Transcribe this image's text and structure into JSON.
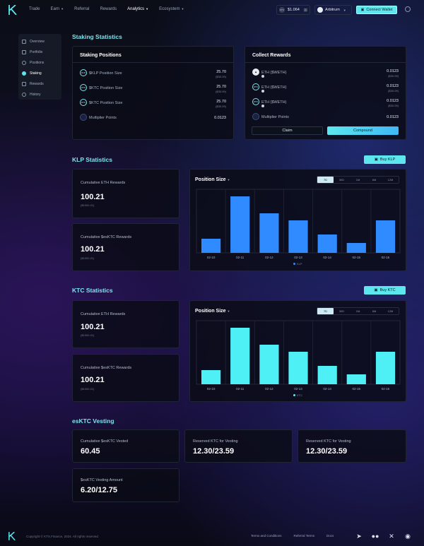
{
  "nav": {
    "links": [
      {
        "label": "Trade",
        "caret": false,
        "active": false
      },
      {
        "label": "Earn",
        "caret": true,
        "active": false
      },
      {
        "label": "Referral",
        "caret": false,
        "active": false
      },
      {
        "label": "Rewards",
        "caret": false,
        "active": false
      },
      {
        "label": "Analytics",
        "caret": true,
        "active": true
      },
      {
        "label": "Ecosystem",
        "caret": true,
        "active": false
      }
    ],
    "price": "$1.064",
    "price_chip": "KTC",
    "network": "Arbitrum",
    "connect_label": "Connect Wallet"
  },
  "sidebar": {
    "items": [
      {
        "label": "Overview",
        "active": false
      },
      {
        "label": "Portfolio",
        "active": false
      },
      {
        "label": "Positions",
        "active": false
      },
      {
        "label": "Staking",
        "active": true
      },
      {
        "label": "Rewards",
        "active": false
      },
      {
        "label": "History",
        "active": false
      }
    ]
  },
  "staking": {
    "title": "Staking Statistics",
    "positions": {
      "title": "Staking Positions",
      "rows": [
        {
          "icon": "KLP",
          "label": "$KLP Position Size",
          "value": "25.70",
          "sub": "($30.09)"
        },
        {
          "icon": "KTC",
          "label": "$KTC Position Size",
          "value": "25.70",
          "sub": "($30.09)"
        },
        {
          "icon": "KTC",
          "label": "$KTC Position Size",
          "value": "25.70",
          "sub": "($30.09)"
        },
        {
          "icon": "",
          "label": "Multiplier Points",
          "value": "0.0123",
          "sub": ""
        }
      ]
    },
    "rewards": {
      "title": "Collect Rewards",
      "rows": [
        {
          "icon": "ETH",
          "label": "ETH ($WETH)",
          "value": "0.0123",
          "sub": "($30.09)"
        },
        {
          "icon": "KTC",
          "label": "ETH ($WETH)",
          "value": "0.0123",
          "sub": "($30.09)"
        },
        {
          "icon": "KTC",
          "label": "ETH ($WETH)",
          "value": "0.0123",
          "sub": "($30.09)"
        },
        {
          "icon": "",
          "label": "Multiplier Points",
          "value": "0.0123",
          "sub": ""
        }
      ],
      "claim_label": "Claim",
      "compound_label": "Compound"
    }
  },
  "klp": {
    "title": "KLP Statistics",
    "buy_label": "Buy KLP",
    "stats": [
      {
        "label": "Cumulative ETH Rewards",
        "value": "100.21",
        "sub": "($1000.21)"
      },
      {
        "label": "Cumulative $esKTC Rewards",
        "value": "100.21",
        "sub": "($1000.21)"
      }
    ],
    "chart_title": "Position Size",
    "timeframes": [
      "7D",
      "30D",
      "1M",
      "6M",
      "12M"
    ],
    "selected_timeframe": "7D"
  },
  "ktc": {
    "title": "KTC Statistics",
    "buy_label": "Buy KTC",
    "stats": [
      {
        "label": "Cumulative ETH Rewards",
        "value": "100.21",
        "sub": "($1000.21)"
      },
      {
        "label": "Cumulative $esKTC Rewards",
        "value": "100.21",
        "sub": "($1000.21)"
      }
    ],
    "chart_title": "Position Size",
    "timeframes": [
      "7D",
      "30D",
      "1M",
      "6M",
      "12M"
    ],
    "selected_timeframe": "7D"
  },
  "vesting": {
    "title": "esKTC Vesting",
    "cards": [
      {
        "label": "Cumulative $esKTC Vested",
        "value": "60.45"
      },
      {
        "label": "Reserved KTC for Vesting",
        "value": "12.30/23.59"
      },
      {
        "label": "Reserved KTC for Vesting",
        "value": "12.30/23.59"
      },
      {
        "label": "$esKTC Vesting Amount",
        "value": "6.20/12.75"
      }
    ]
  },
  "footer": {
    "copyright": "Copyright © KTX.Finance, 2024. All rights reserved",
    "links": [
      "Terms and Conditions",
      "Referral Terms",
      "Docs"
    ]
  },
  "colors": {
    "accent": "#5ce7ee",
    "klp_bar": "#2f8bff",
    "ktc_bar": "#4ff0f5"
  },
  "chart_data": [
    {
      "type": "bar",
      "title": "Position Size",
      "categories": [
        "02-10",
        "02-11",
        "02-12",
        "02-13",
        "02-14",
        "02-15",
        "02-15"
      ],
      "series": [
        {
          "name": "KLP",
          "values": [
            20,
            80,
            56,
            46,
            26,
            14,
            46
          ]
        }
      ],
      "ylim": [
        0,
        90
      ],
      "grid": true,
      "legend": "bottom-center"
    },
    {
      "type": "bar",
      "title": "Position Size",
      "categories": [
        "02-10",
        "02-11",
        "02-12",
        "02-13",
        "02-14",
        "02-15",
        "02-15"
      ],
      "series": [
        {
          "name": "KTC",
          "values": [
            20,
            80,
            56,
            46,
            26,
            14,
            46
          ]
        }
      ],
      "ylim": [
        0,
        90
      ],
      "grid": true,
      "legend": "bottom-center"
    }
  ]
}
